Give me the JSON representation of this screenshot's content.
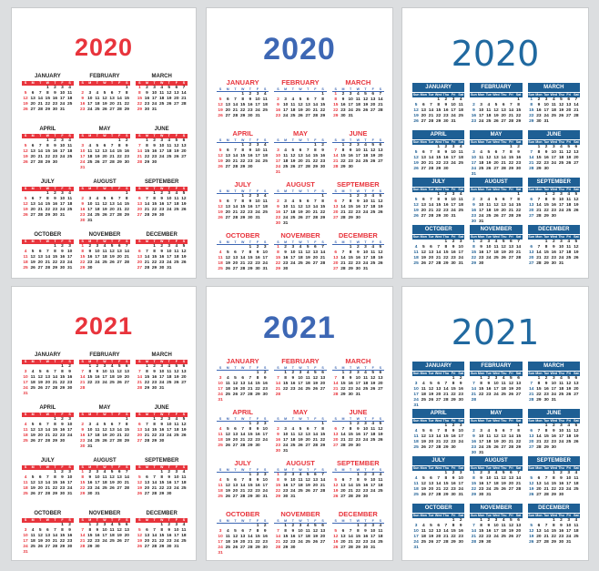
{
  "weekday_letters": [
    "S",
    "M",
    "T",
    "W",
    "T",
    "F",
    "S"
  ],
  "weekday_abbr": [
    "Sun",
    "Mon",
    "Tue",
    "Wed",
    "Thu",
    "Fri",
    "Sat"
  ],
  "months": [
    "JANUARY",
    "FEBRUARY",
    "MARCH",
    "APRIL",
    "MAY",
    "JUNE",
    "JULY",
    "AUGUST",
    "SEPTEMBER",
    "OCTOBER",
    "NOVEMBER",
    "DECEMBER"
  ],
  "cards": [
    {
      "year": "2020",
      "style": "a"
    },
    {
      "year": "2020",
      "style": "b"
    },
    {
      "year": "2020",
      "style": "c"
    },
    {
      "year": "2021",
      "style": "a"
    },
    {
      "year": "2021",
      "style": "b"
    },
    {
      "year": "2021",
      "style": "c"
    }
  ],
  "colors": {
    "red": "#e8343c",
    "blue": "#3d67b4",
    "navy": "#1e5f94",
    "background": "#dcdee0"
  }
}
